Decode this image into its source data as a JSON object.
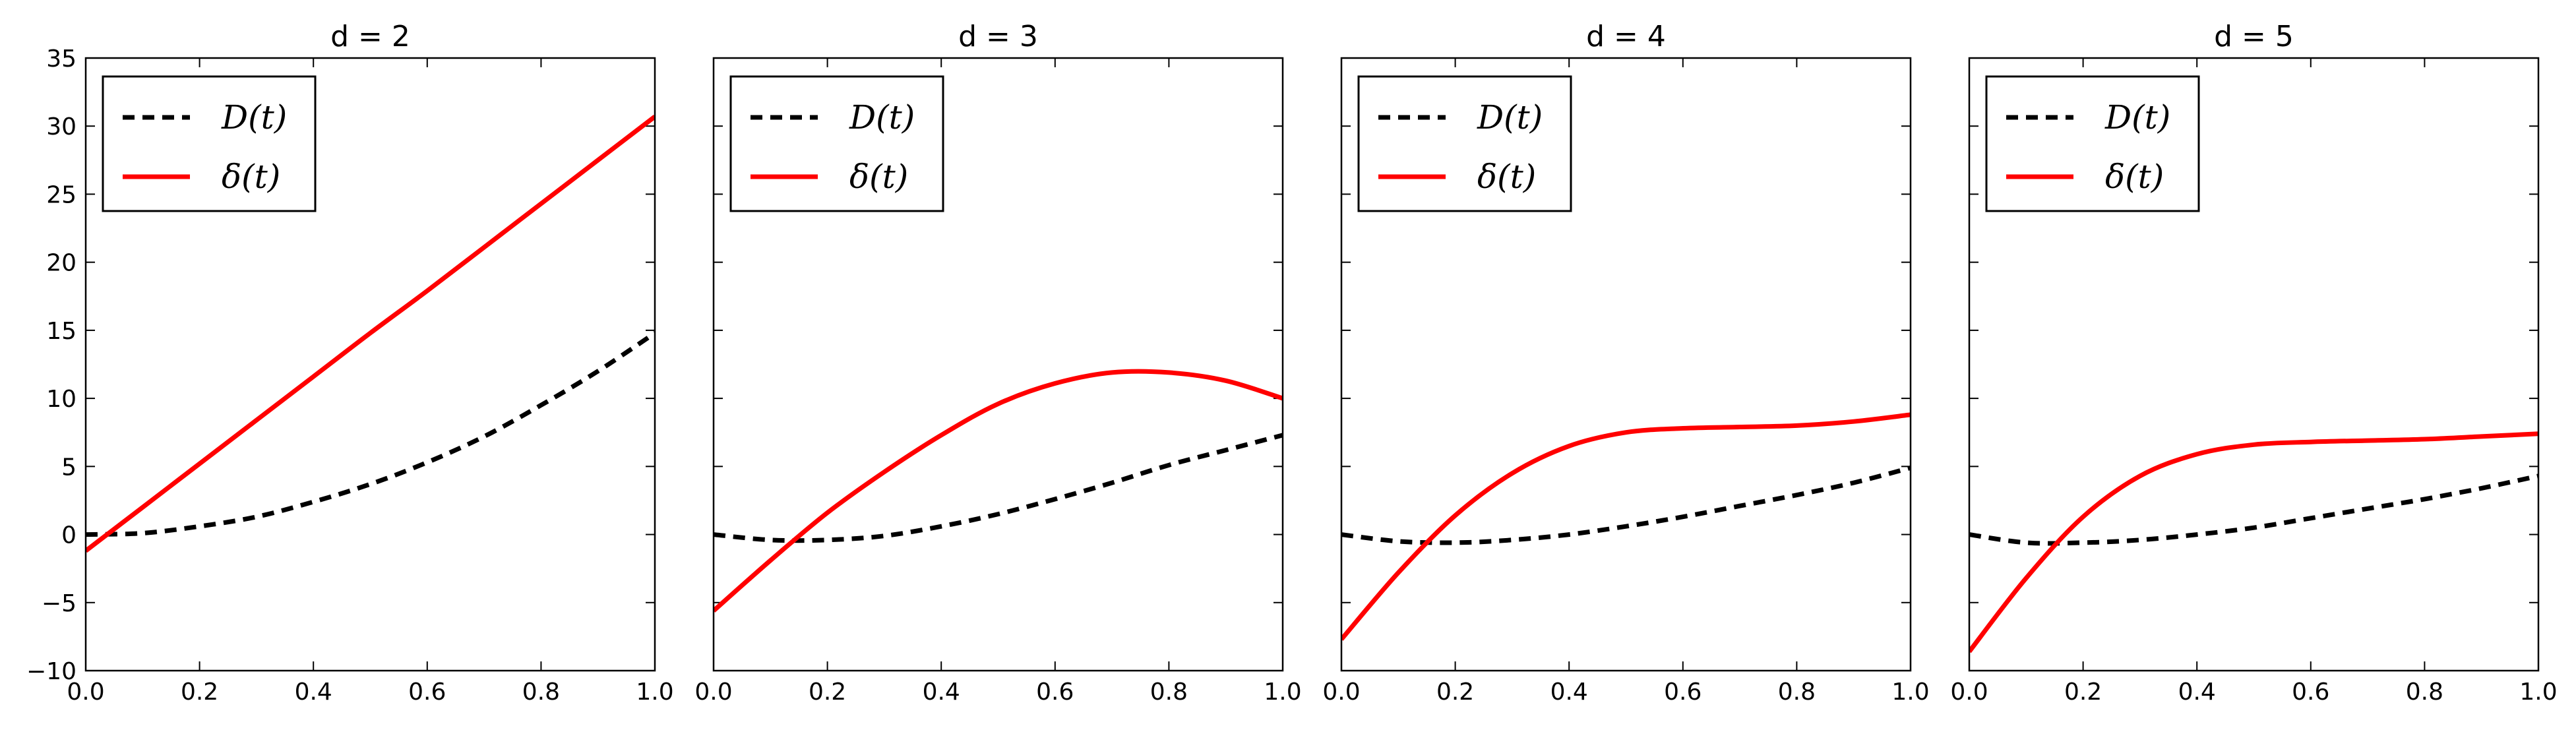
{
  "chart_data": [
    {
      "type": "line",
      "title": "d = 2",
      "xlim": [
        0.0,
        1.0
      ],
      "ylim": [
        -10,
        35
      ],
      "xticks": [
        "0.0",
        "0.2",
        "0.4",
        "0.6",
        "0.8",
        "1.0"
      ],
      "yticks": [
        "−10",
        "−5",
        "0",
        "5",
        "10",
        "15",
        "20",
        "25",
        "30",
        "35"
      ],
      "show_yticklabels": true,
      "legend": "top-left",
      "x": [
        0.0,
        0.1,
        0.2,
        0.3,
        0.4,
        0.5,
        0.6,
        0.7,
        0.8,
        0.9,
        1.0
      ],
      "series": [
        {
          "name": "D(t)",
          "color": "#000000",
          "style": "dashed",
          "values": [
            0.0,
            0.1,
            0.6,
            1.3,
            2.4,
            3.7,
            5.3,
            7.2,
            9.5,
            12.0,
            14.8
          ]
        },
        {
          "name": "δ(t)",
          "color": "#ff0000",
          "style": "solid",
          "values": [
            -1.2,
            2.0,
            5.2,
            8.4,
            11.6,
            14.8,
            17.9,
            21.1,
            24.3,
            27.5,
            30.7
          ]
        }
      ]
    },
    {
      "type": "line",
      "title": "d = 3",
      "xlim": [
        0.0,
        1.0
      ],
      "ylim": [
        -10,
        35
      ],
      "xticks": [
        "0.0",
        "0.2",
        "0.4",
        "0.6",
        "0.8",
        "1.0"
      ],
      "yticks": [
        "−10",
        "−5",
        "0",
        "5",
        "10",
        "15",
        "20",
        "25",
        "30",
        "35"
      ],
      "show_yticklabels": false,
      "legend": "top-left",
      "x": [
        0.0,
        0.1,
        0.2,
        0.3,
        0.4,
        0.5,
        0.6,
        0.7,
        0.8,
        0.9,
        1.0
      ],
      "series": [
        {
          "name": "D(t)",
          "color": "#000000",
          "style": "dashed",
          "values": [
            0.0,
            -0.4,
            -0.4,
            -0.1,
            0.6,
            1.5,
            2.6,
            3.8,
            5.1,
            6.2,
            7.3
          ]
        },
        {
          "name": "δ(t)",
          "color": "#ff0000",
          "style": "solid",
          "values": [
            -5.6,
            -1.9,
            1.6,
            4.6,
            7.3,
            9.6,
            11.1,
            11.9,
            11.9,
            11.3,
            10.0
          ]
        }
      ]
    },
    {
      "type": "line",
      "title": "d = 4",
      "xlim": [
        0.0,
        1.0
      ],
      "ylim": [
        -10,
        35
      ],
      "xticks": [
        "0.0",
        "0.2",
        "0.4",
        "0.6",
        "0.8",
        "1.0"
      ],
      "yticks": [
        "−10",
        "−5",
        "0",
        "5",
        "10",
        "15",
        "20",
        "25",
        "30",
        "35"
      ],
      "show_yticklabels": false,
      "legend": "top-left",
      "x": [
        0.0,
        0.1,
        0.2,
        0.3,
        0.4,
        0.5,
        0.6,
        0.7,
        0.8,
        0.9,
        1.0
      ],
      "series": [
        {
          "name": "D(t)",
          "color": "#000000",
          "style": "dashed",
          "values": [
            0.0,
            -0.5,
            -0.6,
            -0.4,
            0.0,
            0.6,
            1.3,
            2.1,
            2.9,
            3.8,
            4.9
          ]
        },
        {
          "name": "δ(t)",
          "color": "#ff0000",
          "style": "solid",
          "values": [
            -7.7,
            -2.8,
            1.4,
            4.5,
            6.5,
            7.5,
            7.8,
            7.9,
            8.0,
            8.3,
            8.8
          ]
        }
      ]
    },
    {
      "type": "line",
      "title": "d = 5",
      "xlim": [
        0.0,
        1.0
      ],
      "ylim": [
        -10,
        35
      ],
      "xticks": [
        "0.0",
        "0.2",
        "0.4",
        "0.6",
        "0.8",
        "1.0"
      ],
      "yticks": [
        "−10",
        "−5",
        "0",
        "5",
        "10",
        "15",
        "20",
        "25",
        "30",
        "35"
      ],
      "show_yticklabels": false,
      "legend": "top-left",
      "x": [
        0.0,
        0.1,
        0.2,
        0.3,
        0.4,
        0.5,
        0.6,
        0.7,
        0.8,
        0.9,
        1.0
      ],
      "series": [
        {
          "name": "D(t)",
          "color": "#000000",
          "style": "dashed",
          "values": [
            0.0,
            -0.6,
            -0.6,
            -0.4,
            0.0,
            0.5,
            1.2,
            1.9,
            2.6,
            3.4,
            4.3
          ]
        },
        {
          "name": "δ(t)",
          "color": "#ff0000",
          "style": "solid",
          "values": [
            -8.6,
            -3.2,
            1.3,
            4.3,
            5.9,
            6.6,
            6.8,
            6.9,
            7.0,
            7.2,
            7.4
          ]
        }
      ]
    }
  ]
}
